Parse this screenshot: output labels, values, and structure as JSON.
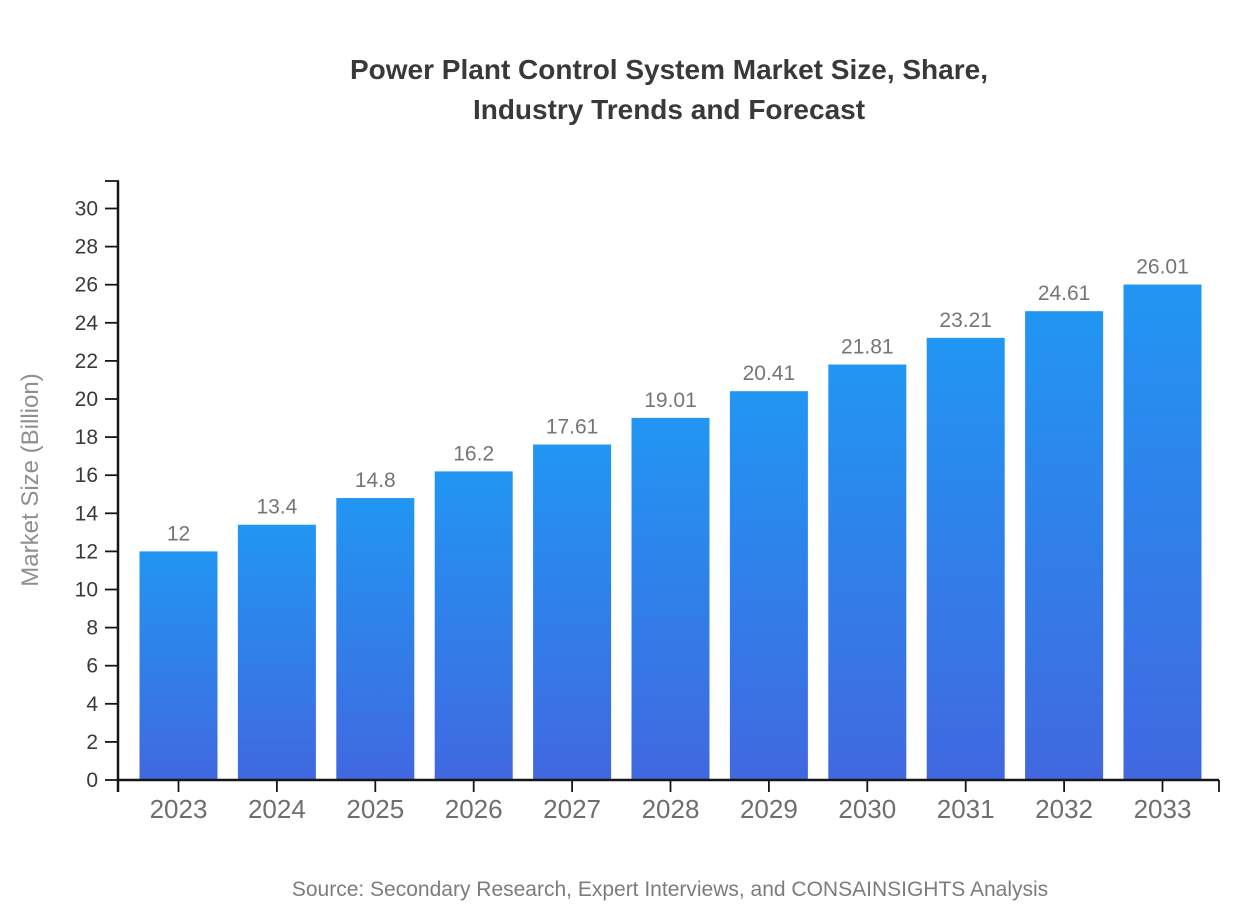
{
  "chart_data": {
    "type": "bar",
    "title": "Power Plant Control System Market Size, Share, Industry Trends and Forecast",
    "title_line1": "Power Plant Control System Market Size, Share,",
    "title_line2": "Industry Trends and Forecast",
    "categories": [
      "2023",
      "2024",
      "2025",
      "2026",
      "2027",
      "2028",
      "2029",
      "2030",
      "2031",
      "2032",
      "2033"
    ],
    "values": [
      12,
      13.4,
      14.8,
      16.2,
      17.61,
      19.01,
      20.41,
      21.81,
      23.21,
      24.61,
      26.01
    ],
    "bar_value_labels": [
      "12",
      "13.4",
      "14.8",
      "16.2",
      "17.61",
      "19.01",
      "20.41",
      "21.81",
      "23.21",
      "24.61",
      "26.01"
    ],
    "xlabel": "",
    "ylabel": "Market Size (Billion)",
    "ylim": [
      0,
      30
    ],
    "ytick_step": 2,
    "yticks": [
      0,
      2,
      4,
      6,
      8,
      10,
      12,
      14,
      16,
      18,
      20,
      22,
      24,
      26,
      28,
      30
    ],
    "grid": false,
    "legend": false,
    "source": "Source: Secondary Research, Expert Interviews, and CONSAINSIGHTS Analysis",
    "colors": {
      "bar_gradient_top": "#2196f3",
      "bar_gradient_bottom": "#4168e0",
      "axis": "#161616",
      "title": "#37393b",
      "value_label": "#757575",
      "xtick_label": "#6e6e6e",
      "ytick_label": "#3a3a3a",
      "ylabel": "#8f8f8f",
      "source": "#7c7c7c"
    }
  }
}
